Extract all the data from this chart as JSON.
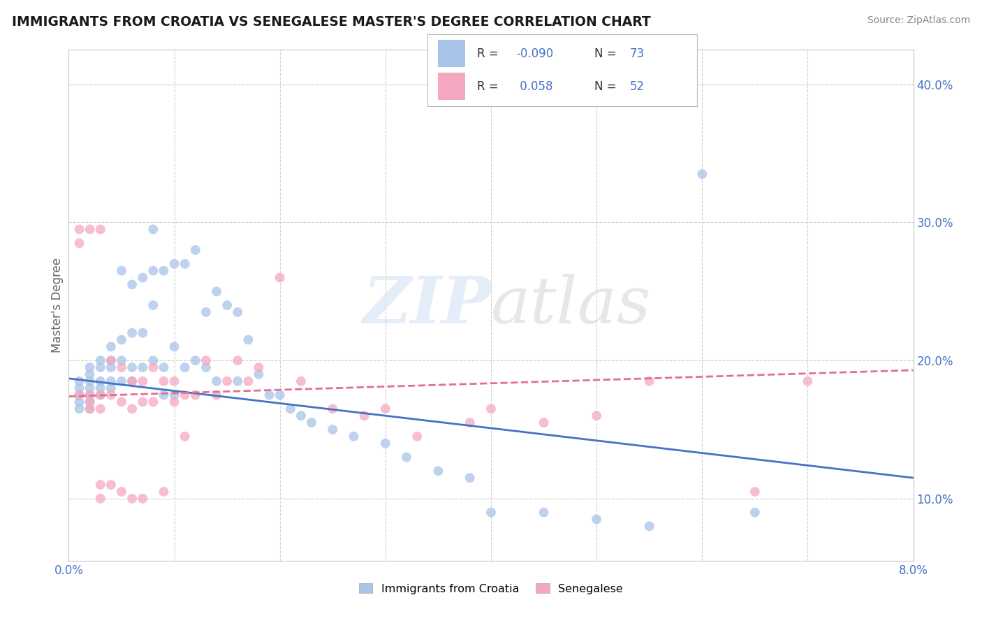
{
  "title": "IMMIGRANTS FROM CROATIA VS SENEGALESE MASTER'S DEGREE CORRELATION CHART",
  "source": "Source: ZipAtlas.com",
  "ylabel": "Master's Degree",
  "xlim": [
    0.0,
    0.08
  ],
  "ylim": [
    0.055,
    0.425
  ],
  "watermark": "ZIPatlas",
  "blue_color": "#a8c4e8",
  "pink_color": "#f4a8bf",
  "blue_line_color": "#4472c4",
  "pink_line_color": "#e07090",
  "grid_color": "#d0d0d0",
  "blue_scatter_x": [
    0.001,
    0.001,
    0.001,
    0.001,
    0.001,
    0.002,
    0.002,
    0.002,
    0.002,
    0.002,
    0.002,
    0.002,
    0.003,
    0.003,
    0.003,
    0.003,
    0.003,
    0.004,
    0.004,
    0.004,
    0.004,
    0.004,
    0.005,
    0.005,
    0.005,
    0.005,
    0.006,
    0.006,
    0.006,
    0.006,
    0.007,
    0.007,
    0.007,
    0.008,
    0.008,
    0.008,
    0.008,
    0.009,
    0.009,
    0.009,
    0.01,
    0.01,
    0.01,
    0.011,
    0.011,
    0.012,
    0.012,
    0.013,
    0.013,
    0.014,
    0.014,
    0.015,
    0.016,
    0.016,
    0.017,
    0.018,
    0.019,
    0.02,
    0.021,
    0.022,
    0.023,
    0.025,
    0.027,
    0.03,
    0.032,
    0.035,
    0.038,
    0.04,
    0.045,
    0.05,
    0.055,
    0.06,
    0.065
  ],
  "blue_scatter_y": [
    0.185,
    0.18,
    0.175,
    0.17,
    0.165,
    0.195,
    0.19,
    0.185,
    0.18,
    0.175,
    0.17,
    0.165,
    0.2,
    0.195,
    0.185,
    0.18,
    0.175,
    0.21,
    0.2,
    0.195,
    0.185,
    0.18,
    0.265,
    0.215,
    0.2,
    0.185,
    0.255,
    0.22,
    0.195,
    0.185,
    0.26,
    0.22,
    0.195,
    0.295,
    0.265,
    0.24,
    0.2,
    0.265,
    0.195,
    0.175,
    0.27,
    0.21,
    0.175,
    0.27,
    0.195,
    0.28,
    0.2,
    0.235,
    0.195,
    0.25,
    0.185,
    0.24,
    0.235,
    0.185,
    0.215,
    0.19,
    0.175,
    0.175,
    0.165,
    0.16,
    0.155,
    0.15,
    0.145,
    0.14,
    0.13,
    0.12,
    0.115,
    0.09,
    0.09,
    0.085,
    0.08,
    0.335,
    0.09
  ],
  "pink_scatter_x": [
    0.001,
    0.001,
    0.001,
    0.002,
    0.002,
    0.002,
    0.002,
    0.003,
    0.003,
    0.003,
    0.003,
    0.003,
    0.004,
    0.004,
    0.004,
    0.005,
    0.005,
    0.005,
    0.006,
    0.006,
    0.006,
    0.007,
    0.007,
    0.007,
    0.008,
    0.008,
    0.009,
    0.009,
    0.01,
    0.01,
    0.011,
    0.011,
    0.012,
    0.013,
    0.014,
    0.015,
    0.016,
    0.017,
    0.018,
    0.02,
    0.022,
    0.025,
    0.028,
    0.03,
    0.033,
    0.038,
    0.04,
    0.045,
    0.05,
    0.055,
    0.065,
    0.07
  ],
  "pink_scatter_y": [
    0.295,
    0.285,
    0.175,
    0.295,
    0.175,
    0.17,
    0.165,
    0.295,
    0.175,
    0.165,
    0.11,
    0.1,
    0.2,
    0.175,
    0.11,
    0.195,
    0.17,
    0.105,
    0.185,
    0.165,
    0.1,
    0.185,
    0.17,
    0.1,
    0.195,
    0.17,
    0.185,
    0.105,
    0.185,
    0.17,
    0.175,
    0.145,
    0.175,
    0.2,
    0.175,
    0.185,
    0.2,
    0.185,
    0.195,
    0.26,
    0.185,
    0.165,
    0.16,
    0.165,
    0.145,
    0.155,
    0.165,
    0.155,
    0.16,
    0.185,
    0.105,
    0.185
  ],
  "blue_trend_x": [
    0.0,
    0.08
  ],
  "blue_trend_y": [
    0.187,
    0.115
  ],
  "pink_trend_x": [
    0.0,
    0.08
  ],
  "pink_trend_y": [
    0.174,
    0.193
  ]
}
